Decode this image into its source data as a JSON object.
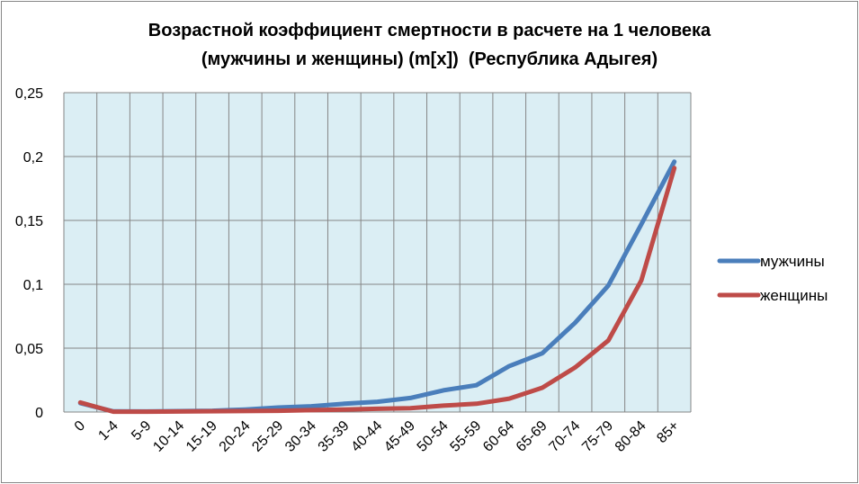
{
  "chart_data": {
    "type": "line",
    "title_line1": "Возрастной коэффициент смертности в расчете на 1 человека",
    "title_line2": "(мужчины и женщины) (m[x])  (Республика Адыгея)",
    "xlabel": "",
    "ylabel": "",
    "categories": [
      "0",
      "1-4",
      "5-9",
      "10-14",
      "15-19",
      "20-24",
      "25-29",
      "30-34",
      "35-39",
      "40-44",
      "45-49",
      "50-54",
      "55-59",
      "60-64",
      "65-69",
      "70-74",
      "75-79",
      "80-84",
      "85+"
    ],
    "y_ticks": [
      "0",
      "0,05",
      "0,1",
      "0,15",
      "0,2",
      "0,25"
    ],
    "ylim": [
      0,
      0.25
    ],
    "grid": true,
    "legend_position": "right",
    "series": [
      {
        "name": "мужчины",
        "color": "#4a7ebb",
        "values": [
          0.007,
          0.0005,
          0.0004,
          0.0007,
          0.001,
          0.002,
          0.0035,
          0.0045,
          0.0065,
          0.008,
          0.011,
          0.017,
          0.021,
          0.036,
          0.046,
          0.07,
          0.099,
          0.147,
          0.196
        ]
      },
      {
        "name": "женщины",
        "color": "#be4b48",
        "values": [
          0.0075,
          0.0003,
          0.0003,
          0.0004,
          0.0006,
          0.0008,
          0.001,
          0.0015,
          0.002,
          0.0025,
          0.003,
          0.005,
          0.0065,
          0.0105,
          0.019,
          0.035,
          0.056,
          0.103,
          0.191
        ]
      }
    ]
  }
}
